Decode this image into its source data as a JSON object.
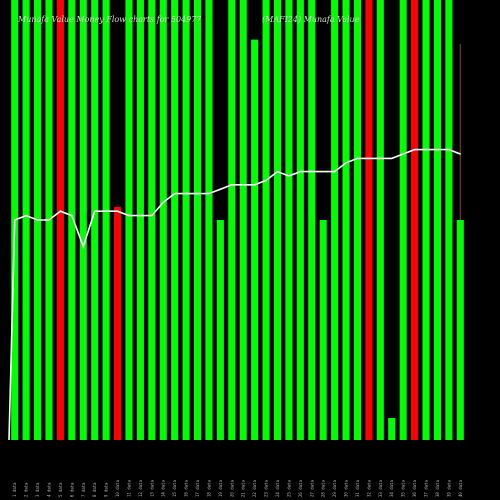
{
  "chart_data": {
    "type": "bar",
    "title": "Munafa Value Money Flow charts for 504977",
    "subtitle": "(MAFI24) Munafa Value",
    "xlabel": "",
    "ylabel": "",
    "ylim": [
      0,
      100
    ],
    "grid": false,
    "legend": "none",
    "colors": {
      "up": "#00ff00",
      "down": "#ff0000",
      "line": "#ffffff",
      "wick": "#8b4513",
      "background": "#000000"
    },
    "categories": [
      "d01",
      "d02",
      "d03",
      "d04",
      "d05",
      "d06",
      "d07",
      "d08",
      "d09",
      "d10",
      "d11",
      "d12",
      "d13",
      "d14",
      "d15",
      "d16",
      "d17",
      "d18",
      "d19",
      "d20",
      "d21",
      "d22",
      "d23",
      "d24",
      "d25",
      "d26",
      "d27",
      "d28",
      "d29",
      "d30",
      "d31",
      "d32",
      "d33",
      "d34",
      "d35",
      "d36",
      "d37",
      "d38",
      "d39",
      "d40"
    ],
    "series": [
      {
        "values": [
          100,
          100,
          100,
          100,
          100,
          100,
          100,
          100,
          100,
          53,
          100,
          100,
          100,
          100,
          100,
          100,
          100,
          100,
          50,
          100,
          100,
          91,
          100,
          100,
          100,
          100,
          100,
          50,
          100,
          100,
          100,
          100,
          100,
          5,
          100,
          100,
          100,
          100,
          100,
          50
        ],
        "directions": [
          "up",
          "up",
          "up",
          "up",
          "down",
          "up",
          "up",
          "up",
          "up",
          "down",
          "up",
          "up",
          "up",
          "up",
          "up",
          "up",
          "up",
          "up",
          "up",
          "up",
          "up",
          "up",
          "up",
          "up",
          "up",
          "up",
          "up",
          "up",
          "up",
          "up",
          "up",
          "down",
          "up",
          "up",
          "up",
          "down",
          "up",
          "up",
          "up",
          "up"
        ]
      },
      {
        "values": [
          50,
          51,
          50,
          50,
          52,
          51,
          44,
          52,
          52,
          52,
          51,
          51,
          51,
          54,
          56,
          56,
          56,
          56,
          57,
          58,
          58,
          58,
          59,
          61,
          60,
          61,
          61,
          61,
          61,
          63,
          64,
          64,
          64,
          64,
          65,
          66,
          66,
          66,
          66,
          65
        ]
      }
    ],
    "wick_tops": [
      0,
      0,
      0,
      0,
      0,
      0,
      90,
      90,
      0,
      0,
      0,
      0,
      0,
      0,
      0,
      0,
      0,
      0,
      0,
      0,
      0,
      0,
      0,
      0,
      0,
      0,
      0,
      0,
      0,
      0,
      0,
      0,
      0,
      0,
      0,
      0,
      0,
      0,
      0,
      90
    ],
    "tick_labels": [
      "1 data",
      "2 data",
      "3 data",
      "4 data",
      "5 data",
      "6 data",
      "7 data",
      "8 data",
      "9 data",
      "10 data",
      "11 data",
      "12 data",
      "13 data",
      "14 data",
      "15 data",
      "16 data",
      "17 data",
      "18 data",
      "19 data",
      "20 data",
      "21 data",
      "22 data",
      "23 data",
      "24 data",
      "25 data",
      "26 data",
      "27 data",
      "28 data",
      "29 data",
      "30 data",
      "31 data",
      "32 data",
      "33 data",
      "34 data",
      "35 data",
      "36 data",
      "37 data",
      "38 data",
      "39 data",
      "40 data"
    ]
  }
}
